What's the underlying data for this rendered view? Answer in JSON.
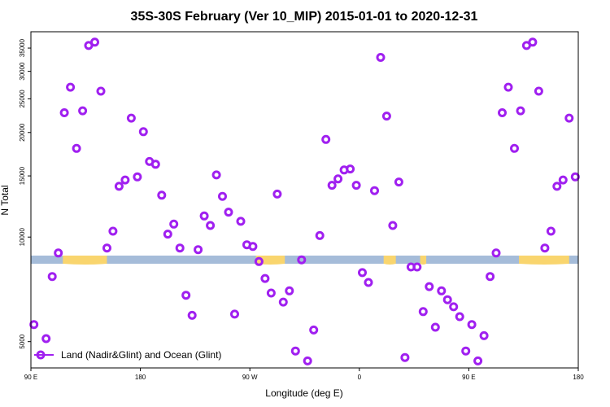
{
  "chart_data": {
    "type": "scatter",
    "title": "35S-30S February (Ver 10_MIP)   2015-01-01 to 2020-12-31",
    "xlabel": "Longitude (deg E)",
    "ylabel": "N Total",
    "y_scale": "log",
    "xlim": [
      90,
      450
    ],
    "ylim": [
      4200,
      39000
    ],
    "x_ticks": [
      {
        "value": 90,
        "label": "90 E"
      },
      {
        "value": 162,
        "label": "180"
      },
      {
        "value": 234,
        "label": "90 W"
      },
      {
        "value": 306,
        "label": "0"
      },
      {
        "value": 378,
        "label": "90 E"
      },
      {
        "value": 450,
        "label": "180"
      }
    ],
    "y_ticks": [
      {
        "value": 5000,
        "label": "5000"
      },
      {
        "value": 10000,
        "label": "10000"
      },
      {
        "value": 15000,
        "label": "15000"
      },
      {
        "value": 20000,
        "label": "20000"
      },
      {
        "value": 25000,
        "label": "25000"
      },
      {
        "value": 30000,
        "label": "30000"
      },
      {
        "value": 35000,
        "label": "35000"
      }
    ],
    "series": [
      {
        "name": "Land (Nadir&Glint) and Ocean (Glint)",
        "color": "#a020f0",
        "marker": "open-circle",
        "points": [
          [
            92,
            5600
          ],
          [
            100,
            5100
          ],
          [
            104,
            7700
          ],
          [
            108,
            9000
          ],
          [
            112,
            22800
          ],
          [
            116,
            27000
          ],
          [
            120,
            18000
          ],
          [
            124,
            23100
          ],
          [
            128,
            35600
          ],
          [
            132,
            36400
          ],
          [
            136,
            26300
          ],
          [
            140,
            9300
          ],
          [
            144,
            10400
          ],
          [
            148,
            14000
          ],
          [
            152,
            14600
          ],
          [
            156,
            22000
          ],
          [
            160,
            14900
          ],
          [
            164,
            20100
          ],
          [
            168,
            16500
          ],
          [
            172,
            16200
          ],
          [
            176,
            13200
          ],
          [
            180,
            10200
          ],
          [
            184,
            10900
          ],
          [
            188,
            9300
          ],
          [
            192,
            6800
          ],
          [
            196,
            5950
          ],
          [
            200,
            9200
          ],
          [
            204,
            11500
          ],
          [
            208,
            10800
          ],
          [
            212,
            15100
          ],
          [
            216,
            13100
          ],
          [
            220,
            11800
          ],
          [
            224,
            6000
          ],
          [
            228,
            11100
          ],
          [
            232,
            9500
          ],
          [
            236,
            9400
          ],
          [
            240,
            8500
          ],
          [
            244,
            7600
          ],
          [
            248,
            6900
          ],
          [
            252,
            13300
          ],
          [
            256,
            6500
          ],
          [
            260,
            7000
          ],
          [
            264,
            4700
          ],
          [
            268,
            8600
          ],
          [
            272,
            4400
          ],
          [
            276,
            5400
          ],
          [
            280,
            10100
          ],
          [
            284,
            19100
          ],
          [
            288,
            14100
          ],
          [
            292,
            14700
          ],
          [
            296,
            15600
          ],
          [
            300,
            15700
          ],
          [
            304,
            14100
          ],
          [
            308,
            7900
          ],
          [
            312,
            7400
          ],
          [
            316,
            13600
          ],
          [
            320,
            32900
          ],
          [
            324,
            22300
          ],
          [
            328,
            10800
          ],
          [
            332,
            14400
          ],
          [
            336,
            4500
          ],
          [
            340,
            8200
          ],
          [
            344,
            8200
          ],
          [
            348,
            6100
          ],
          [
            352,
            7200
          ],
          [
            356,
            5500
          ],
          [
            360,
            7000
          ],
          [
            364,
            6600
          ],
          [
            368,
            6300
          ],
          [
            372,
            5900
          ],
          [
            376,
            4700
          ],
          [
            380,
            5600
          ],
          [
            384,
            4400
          ],
          [
            388,
            5200
          ],
          [
            392,
            7700
          ],
          [
            396,
            9000
          ],
          [
            400,
            22800
          ],
          [
            404,
            27000
          ],
          [
            408,
            18000
          ],
          [
            412,
            23100
          ],
          [
            416,
            35600
          ],
          [
            420,
            36400
          ],
          [
            424,
            26300
          ],
          [
            428,
            9300
          ],
          [
            432,
            10400
          ],
          [
            436,
            14000
          ],
          [
            440,
            14600
          ],
          [
            444,
            22000
          ],
          [
            448,
            14900
          ]
        ]
      }
    ],
    "surface_band": {
      "ocean_color": "#a5bcd9",
      "land_color": "#f9d56e",
      "land_segments": [
        [
          111,
          140
        ],
        [
          238,
          257
        ],
        [
          322,
          330
        ],
        [
          346,
          350
        ],
        [
          411,
          444
        ]
      ]
    },
    "legend": {
      "position": "bottom-left",
      "label": "Land (Nadir&Glint) and Ocean (Glint)"
    }
  }
}
